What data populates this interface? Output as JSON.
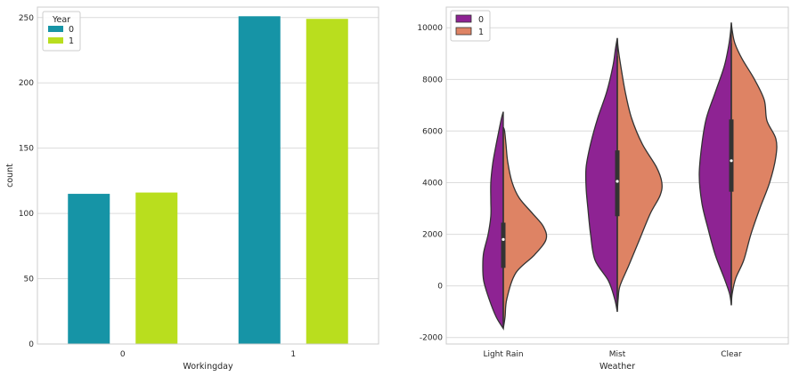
{
  "chart_data": [
    {
      "type": "bar",
      "xlabel": "Workingday",
      "ylabel": "count",
      "categories": [
        "0",
        "1"
      ],
      "ylim": [
        0,
        258
      ],
      "yticks": [
        0,
        50,
        100,
        150,
        200,
        250
      ],
      "grid": true,
      "legend": {
        "title": "Year",
        "position": "top-left",
        "entries": [
          "0",
          "1"
        ]
      },
      "series": [
        {
          "name": "0",
          "color": "#1694a6",
          "values": [
            115,
            251
          ]
        },
        {
          "name": "1",
          "color": "#b9de1e",
          "values": [
            116,
            249
          ]
        }
      ]
    },
    {
      "type": "violin",
      "split": true,
      "xlabel": "Weather",
      "ylabel": "",
      "categories": [
        "Light Rain",
        "Mist",
        "Clear"
      ],
      "ylim": [
        -2250,
        10800
      ],
      "yticks": [
        -2000,
        0,
        2000,
        4000,
        6000,
        8000,
        10000
      ],
      "grid": true,
      "legend": {
        "title": "",
        "position": "top-left",
        "entries": [
          "0",
          "1"
        ]
      },
      "series": [
        {
          "name": "0",
          "color": "#8e2393"
        },
        {
          "name": "1",
          "color": "#de8364"
        }
      ],
      "stats": [
        {
          "category": "Light Rain",
          "median": 1800,
          "q1": 700,
          "q3": 2450,
          "min": -1350,
          "max": 6050
        },
        {
          "category": "Mist",
          "median": 4050,
          "q1": 2700,
          "q3": 5250,
          "min": -750,
          "max": 8900
        },
        {
          "category": "Clear",
          "median": 4850,
          "q1": 3650,
          "q3": 6450,
          "min": -400,
          "max": 9400
        }
      ],
      "density_points": [
        {
          "left": [
            [
              -1650,
              0
            ],
            [
              -1200,
              8
            ],
            [
              -500,
              16
            ],
            [
              200,
              22
            ],
            [
              800,
              23
            ],
            [
              1300,
              22
            ],
            [
              2000,
              17
            ],
            [
              2700,
              14
            ],
            [
              3300,
              14
            ],
            [
              4000,
              14
            ],
            [
              4700,
              12
            ],
            [
              5300,
              9
            ],
            [
              6000,
              5
            ],
            [
              6500,
              2
            ],
            [
              6750,
              0
            ]
          ],
          "right": [
            [
              -1650,
              0
            ],
            [
              -1200,
              2
            ],
            [
              -500,
              4
            ],
            [
              500,
              14
            ],
            [
              1200,
              35
            ],
            [
              1800,
              48
            ],
            [
              2300,
              45
            ],
            [
              2800,
              33
            ],
            [
              3400,
              18
            ],
            [
              4000,
              10
            ],
            [
              4800,
              5
            ],
            [
              5500,
              3
            ],
            [
              6000,
              1.5
            ],
            [
              6150,
              0
            ]
          ]
        },
        {
          "left": [
            [
              -1000,
              0
            ],
            [
              -500,
              3
            ],
            [
              200,
              10
            ],
            [
              1000,
              25
            ],
            [
              2000,
              30
            ],
            [
              3000,
              33
            ],
            [
              3800,
              35
            ],
            [
              4600,
              35
            ],
            [
              5500,
              30
            ],
            [
              6500,
              22
            ],
            [
              7500,
              12
            ],
            [
              8500,
              5
            ],
            [
              9200,
              2
            ],
            [
              9600,
              0
            ]
          ],
          "right": [
            [
              -1000,
              0
            ],
            [
              -500,
              1
            ],
            [
              0,
              3
            ],
            [
              800,
              13
            ],
            [
              1800,
              25
            ],
            [
              2800,
              37
            ],
            [
              3500,
              48
            ],
            [
              4000,
              50
            ],
            [
              4600,
              44
            ],
            [
              5500,
              28
            ],
            [
              6500,
              16
            ],
            [
              7500,
              9
            ],
            [
              8500,
              4
            ],
            [
              9200,
              1
            ],
            [
              9600,
              0
            ]
          ]
        },
        {
          "left": [
            [
              -750,
              0
            ],
            [
              -300,
              2
            ],
            [
              300,
              8
            ],
            [
              1200,
              18
            ],
            [
              2200,
              26
            ],
            [
              3200,
              33
            ],
            [
              4300,
              36
            ],
            [
              5500,
              33
            ],
            [
              6500,
              28
            ],
            [
              7500,
              18
            ],
            [
              8500,
              8
            ],
            [
              9300,
              3
            ],
            [
              9800,
              1
            ],
            [
              10200,
              0
            ]
          ],
          "right": [
            [
              -750,
              0
            ],
            [
              -300,
              1
            ],
            [
              300,
              5
            ],
            [
              1000,
              14
            ],
            [
              2000,
              22
            ],
            [
              3000,
              32
            ],
            [
              4000,
              43
            ],
            [
              5000,
              50
            ],
            [
              5700,
              50
            ],
            [
              6400,
              40
            ],
            [
              7200,
              37
            ],
            [
              8000,
              26
            ],
            [
              8800,
              12
            ],
            [
              9400,
              4
            ],
            [
              9900,
              1
            ],
            [
              10200,
              0
            ]
          ]
        }
      ]
    }
  ]
}
